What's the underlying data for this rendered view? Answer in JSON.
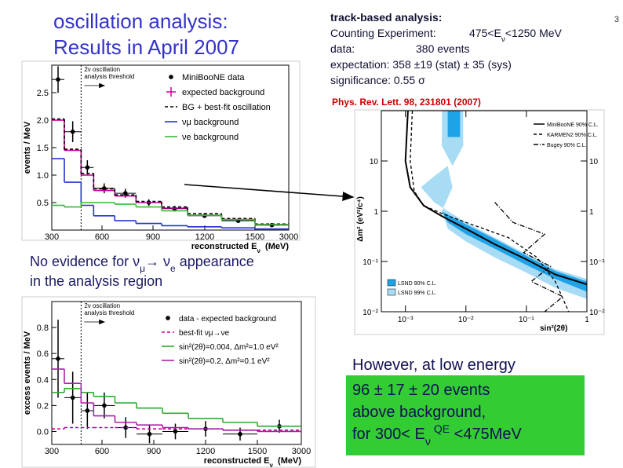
{
  "header": {
    "title": [
      "oscillation analysis:",
      "Results in April 2007"
    ],
    "page_number": "3"
  },
  "analysis": {
    "heading": "track-based analysis:",
    "counting_label": "Counting Experiment:",
    "counting_range": [
      "475<E",
      "ν",
      "<1250 MeV"
    ],
    "data_label": "data:",
    "data_value": "380 events",
    "expectation": "expectation: 358 ±19 (stat) ± 35 (sys)",
    "significance": "significance: 0.55 σ"
  },
  "reference": "Phys. Rev. Lett. 98, 231801 (2007)",
  "conclusion": {
    "line1": [
      "No evidence for ν",
      "μ",
      "→ ν",
      "e",
      " appearance"
    ],
    "line2": "in the analysis region"
  },
  "highlight": {
    "lead": "However, at low energy",
    "lines": [
      "96 ± 17 ± 20 events",
      "above background,"
    ],
    "energy": [
      "for 300< E",
      "ν",
      "QE",
      " <475MeV"
    ]
  },
  "chart_data": [
    {
      "type": "histogram",
      "y_label": "events / MeV",
      "x_label": [
        "reconstructed E",
        "ν",
        "  (MeV)"
      ],
      "annotation": [
        "2ν oscillation",
        "analysis threshold"
      ],
      "threshold": 475,
      "bins": [
        300,
        375,
        475,
        550,
        675,
        800,
        950,
        1100,
        1300,
        1500,
        3000
      ],
      "xlim": [
        300,
        3000
      ],
      "xticks": [
        300,
        600,
        900,
        1200,
        1500,
        3000
      ],
      "ylim": [
        0,
        3
      ],
      "yticks": [
        0.5,
        {
          "value": 1,
          "label": "1.0"
        },
        1.5,
        {
          "value": 2,
          "label": "2.0"
        },
        2.5
      ],
      "series": [
        {
          "name": "MiniBooNE data",
          "style": "points",
          "color": "#000000",
          "values": [
            2.74,
            1.79,
            1.14,
            0.76,
            0.67,
            0.5,
            0.39,
            0.26,
            0.17,
            0.09
          ],
          "errors": [
            0.24,
            0.19,
            0.13,
            0.09,
            0.08,
            0.06,
            0.05,
            0.04,
            0.04,
            0.02
          ]
        },
        {
          "name": "expected background",
          "style": "crosses",
          "color": "#cc0099",
          "values": [
            2.0,
            1.45,
            1.0,
            0.72,
            0.62,
            0.5,
            0.4,
            0.27,
            0.19,
            0.1
          ]
        },
        {
          "name": "BG + best-fit oscillation",
          "style": "dashed",
          "color": "#000000",
          "values": [
            2.02,
            1.47,
            1.03,
            0.75,
            0.64,
            0.52,
            0.42,
            0.3,
            0.21,
            0.11
          ]
        },
        {
          "name": "νμ background",
          "style": "step",
          "color": "#2233cc",
          "values": [
            1.3,
            0.87,
            0.45,
            0.26,
            0.17,
            0.12,
            0.08,
            0.06,
            0.04,
            0.02
          ]
        },
        {
          "name": "νe background",
          "style": "step",
          "color": "#33bb33",
          "values": [
            0.45,
            0.42,
            0.5,
            0.5,
            0.47,
            0.42,
            0.35,
            0.27,
            0.19,
            0.1
          ]
        }
      ]
    },
    {
      "type": "histogram",
      "y_label": "excess events / MeV",
      "x_label": [
        "reconstructed E",
        "ν",
        "  (MeV)"
      ],
      "annotation": [
        "2ν oscillation",
        "analysis threshold"
      ],
      "threshold": 475,
      "bins": [
        300,
        375,
        475,
        550,
        675,
        800,
        950,
        1100,
        1300,
        1500,
        3000
      ],
      "xlim": [
        300,
        3000
      ],
      "xticks": [
        300,
        600,
        900,
        1200,
        1500,
        3000
      ],
      "ylim": [
        -0.1,
        1.0
      ],
      "yticks": [
        {
          "value": 0,
          "label": "0.0"
        },
        0.2,
        0.4,
        0.6,
        0.8
      ],
      "series": [
        {
          "name": "data - expected background",
          "style": "points",
          "color": "#000000",
          "values": [
            0.56,
            0.26,
            0.16,
            0.2,
            0.03,
            -0.02,
            0.0,
            0.02,
            -0.02,
            0.04
          ],
          "errors": [
            0.3,
            0.2,
            0.14,
            0.1,
            0.08,
            0.07,
            0.06,
            0.06,
            0.05,
            0.05
          ]
        },
        {
          "name": "best-fit νμ→νe",
          "style": "dashed",
          "color": "#cc0099",
          "values": [
            0.02,
            0.03,
            0.03,
            0.03,
            0.03,
            0.02,
            0.02,
            0.02,
            0.01,
            0.01
          ]
        },
        {
          "name": "sin²(2θ)=0.004, Δm²=1.0 eV²",
          "style": "step",
          "color": "#33aa33",
          "values": [
            0.3,
            0.33,
            0.3,
            0.27,
            0.22,
            0.18,
            0.14,
            0.1,
            0.07,
            0.04
          ]
        },
        {
          "name": "sin²(2θ)=0.2, Δm²=0.1 eV²",
          "style": "step",
          "color": "#aa22aa",
          "values": [
            0.48,
            0.37,
            0.22,
            0.12,
            0.07,
            0.05,
            0.03,
            0.02,
            0.01,
            0.0
          ]
        }
      ]
    },
    {
      "type": "contour",
      "x_label": "sin²(2θ)",
      "y_label": "Δm² (eV²/c⁴)",
      "log_x": true,
      "log_y": true,
      "xlim": [
        0.0004,
        1
      ],
      "ylim": [
        0.01,
        100
      ],
      "xticks": [
        {
          "value": 0.001,
          "label": "10⁻³"
        },
        {
          "value": 0.01,
          "label": "10⁻²"
        },
        {
          "value": 0.1,
          "label": "10⁻¹"
        },
        1
      ],
      "yticks": [
        {
          "value": 0.01,
          "label": "10⁻²"
        },
        {
          "value": 0.1,
          "label": "10⁻¹"
        },
        1,
        10
      ],
      "regions": [
        {
          "name": "LSND 99% C.L.",
          "color": "#a8dcf5",
          "x": [
            0.0018,
            0.003,
            0.01,
            0.03,
            0.1,
            0.3,
            1,
            1,
            0.3,
            0.1,
            0.03,
            0.01,
            0.005,
            0.004,
            0.006,
            0.005,
            0.003,
            null,
            0.004,
            0.009,
            0.009,
            0.006,
            0.004
          ],
          "y": [
            3,
            1.5,
            0.6,
            0.3,
            0.14,
            0.07,
            0.045,
            0.018,
            0.03,
            0.06,
            0.12,
            0.25,
            0.45,
            1,
            3,
            8,
            5,
            null,
            100,
            100,
            20,
            8,
            20
          ]
        },
        {
          "name": "LSND 90% C.L.",
          "color": "#1fa2e6",
          "x": [
            0.004,
            0.01,
            0.03,
            0.1,
            0.3,
            1,
            1,
            0.3,
            0.1,
            0.03,
            0.01,
            0.005,
            null,
            0.005,
            0.008,
            0.008,
            0.005
          ],
          "y": [
            1,
            0.55,
            0.28,
            0.13,
            0.065,
            0.04,
            0.025,
            0.045,
            0.085,
            0.18,
            0.35,
            0.6,
            null,
            100,
            100,
            30,
            30
          ]
        }
      ],
      "series": [
        {
          "name": "MiniBooNE 90% C.L.",
          "style": "solid",
          "color": "#000000",
          "x": [
            0.0011,
            0.001,
            0.0012,
            0.002,
            0.004,
            0.01,
            0.03,
            0.1,
            0.3,
            1
          ],
          "y": [
            100,
            10,
            3,
            1.3,
            0.8,
            0.45,
            0.22,
            0.11,
            0.055,
            0.035
          ]
        },
        {
          "name": "KARMEN2 90% C.L.",
          "style": "dashed",
          "color": "#000000",
          "x": [
            0.0013,
            0.0012,
            0.0014,
            0.002,
            0.004,
            0.01,
            0.05,
            0.15,
            0.3,
            0.5
          ],
          "y": [
            100,
            10,
            2.5,
            1.3,
            0.9,
            0.6,
            0.3,
            0.12,
            0.04,
            0.01
          ]
        },
        {
          "name": "Bugey 90% C.L.",
          "style": "dashdot",
          "color": "#000000",
          "x": [
            0.03,
            0.06,
            0.2,
            0.09,
            0.25,
            0.12,
            0.4,
            0.2
          ],
          "y": [
            1.5,
            0.6,
            0.35,
            0.15,
            0.08,
            0.04,
            0.02,
            0.01
          ]
        }
      ]
    }
  ]
}
